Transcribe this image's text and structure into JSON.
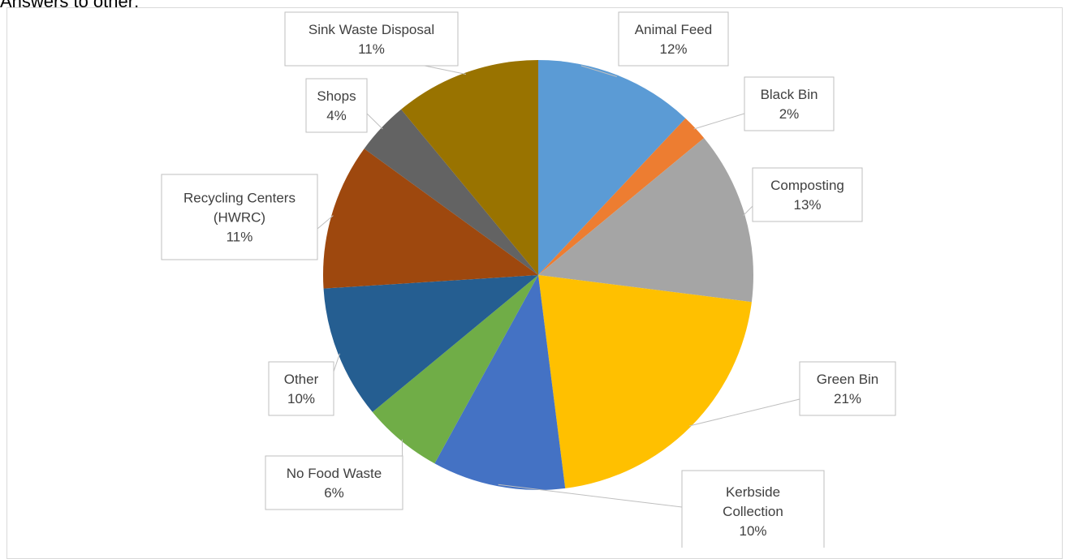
{
  "page": {
    "title": "Answers to other:"
  },
  "chart_data": {
    "type": "pie",
    "title": "",
    "slices": [
      {
        "label": "Animal Feed",
        "value": 12,
        "pct_label": "12%",
        "color": "#5B9BD5"
      },
      {
        "label": "Black Bin",
        "value": 2,
        "pct_label": "2%",
        "color": "#ED7D31"
      },
      {
        "label": "Composting",
        "value": 13,
        "pct_label": "13%",
        "color": "#A5A5A5"
      },
      {
        "label": "Green Bin",
        "value": 21,
        "pct_label": "21%",
        "color": "#FFC000"
      },
      {
        "label": "Kerbside Collection",
        "value": 10,
        "pct_label": "10%",
        "color": "#4472C4"
      },
      {
        "label": "No Food Waste",
        "value": 6,
        "pct_label": "6%",
        "color": "#70AD47"
      },
      {
        "label": "Other",
        "value": 10,
        "pct_label": "10%",
        "color": "#255E91"
      },
      {
        "label": "Recycling Centers (HWRC)",
        "value": 11,
        "pct_label": "11%",
        "color": "#9E480E"
      },
      {
        "label": "Shops",
        "value": 4,
        "pct_label": "4%",
        "color": "#636363"
      },
      {
        "label": "Sink Waste Disposal",
        "value": 11,
        "pct_label": "11%",
        "color": "#997300"
      }
    ]
  }
}
